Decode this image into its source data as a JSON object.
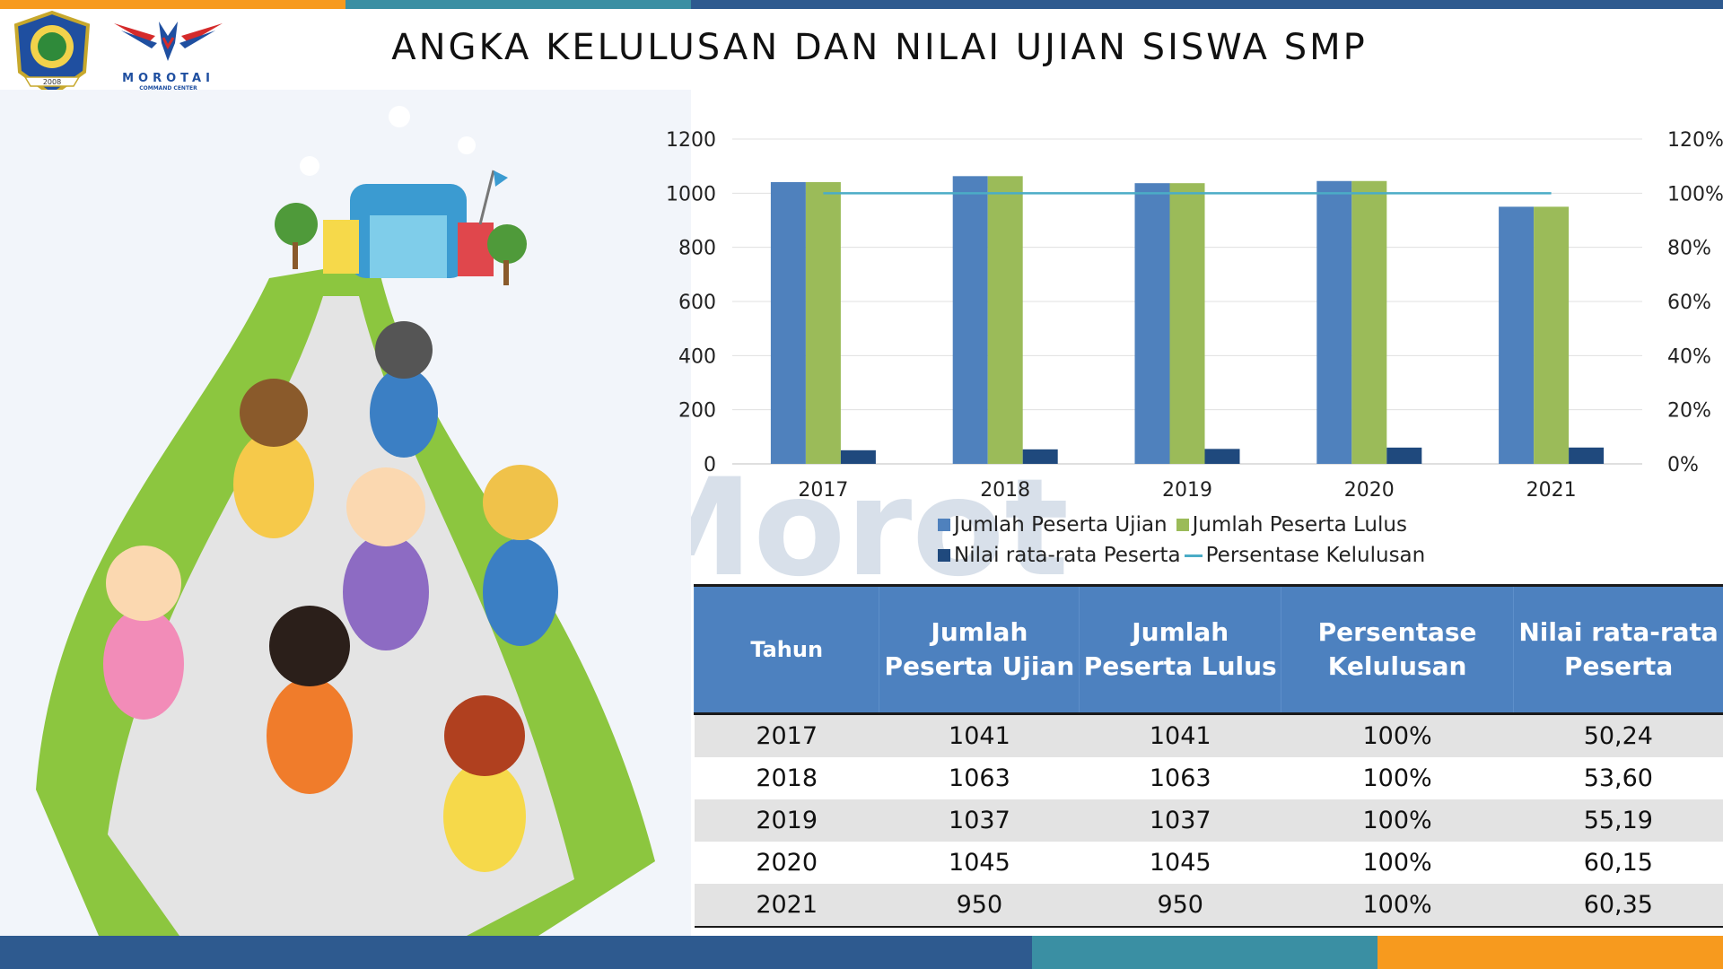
{
  "page": {
    "title": "ANGKA KELULUSAN DAN NILAI UJIAN SISWA SMP",
    "logo_text": "MOROTAI",
    "logo_subtext": "COMMAND CENTER",
    "emblem_year": "2008",
    "watermark": "Morotai"
  },
  "colors": {
    "blue_bar": "#4f81bd",
    "green_bar": "#9bbb59",
    "navy_bar": "#1f497d",
    "line": "#4bacc6",
    "header_blue": "#4d81bf",
    "orange": "#f79a1e",
    "dark_blue": "#2e5a8f",
    "teal": "#3a8fa3"
  },
  "chart_data": {
    "type": "bar",
    "categories": [
      "2017",
      "2018",
      "2019",
      "2020",
      "2021"
    ],
    "series": [
      {
        "name": "Jumlah Peserta Ujian",
        "type": "bar",
        "axis": "left",
        "values": [
          1041,
          1063,
          1037,
          1045,
          950
        ]
      },
      {
        "name": "Jumlah Peserta Lulus",
        "type": "bar",
        "axis": "left",
        "values": [
          1041,
          1063,
          1037,
          1045,
          950
        ]
      },
      {
        "name": "Nilai rata-rata Peserta",
        "type": "bar",
        "axis": "left",
        "values": [
          50.24,
          53.6,
          55.19,
          60.15,
          60.35
        ]
      },
      {
        "name": "Persentase Kelulusan",
        "type": "line",
        "axis": "right",
        "values": [
          1.0,
          1.0,
          1.0,
          1.0,
          1.0
        ]
      }
    ],
    "y_left": {
      "range": [
        0,
        1200
      ],
      "ticks": [
        "0",
        "200",
        "400",
        "600",
        "800",
        "1000",
        "1200"
      ]
    },
    "y_right": {
      "range": [
        0,
        1.2
      ],
      "ticks": [
        "0%",
        "20%",
        "40%",
        "60%",
        "80%",
        "100%",
        "120%"
      ]
    },
    "grid": true,
    "legend_position": "bottom"
  },
  "legend": [
    {
      "label": "Jumlah Peserta Ujian",
      "color": "#4f81bd",
      "kind": "box"
    },
    {
      "label": "Jumlah Peserta Lulus",
      "color": "#9bbb59",
      "kind": "box"
    },
    {
      "label": "Nilai rata-rata Peserta",
      "color": "#1f497d",
      "kind": "box"
    },
    {
      "label": "Persentase Kelulusan",
      "color": "#4bacc6",
      "kind": "line"
    }
  ],
  "table": {
    "headers": [
      "Tahun",
      "Jumlah Peserta Ujian",
      "Jumlah Peserta Lulus",
      "Persentase Kelulusan",
      "Nilai rata-rata Peserta"
    ],
    "rows": [
      [
        "2017",
        "1041",
        "1041",
        "100%",
        "50,24"
      ],
      [
        "2018",
        "1063",
        "1063",
        "100%",
        "53,60"
      ],
      [
        "2019",
        "1037",
        "1037",
        "100%",
        "55,19"
      ],
      [
        "2020",
        "1045",
        "1045",
        "100%",
        "60,15"
      ],
      [
        "2021",
        "950",
        "950",
        "100%",
        "60,35"
      ]
    ]
  }
}
